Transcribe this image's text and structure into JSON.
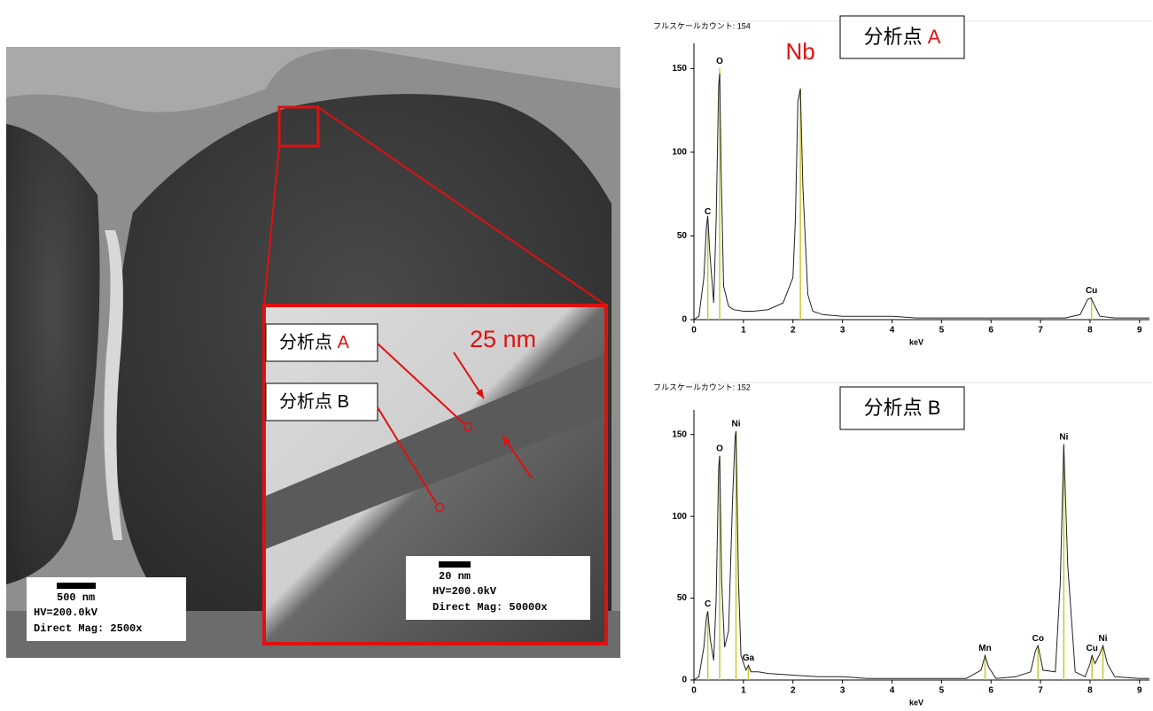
{
  "micrograph": {
    "point_a": {
      "text": "分析点",
      "letter": "A"
    },
    "point_b": {
      "text": "分析点",
      "letter": "B"
    },
    "thickness": "25 nm",
    "scale_low": {
      "bar": "500 nm",
      "hv": "HV=200.0kV",
      "mag": "Direct Mag: 2500x"
    },
    "scale_high": {
      "bar": "20 nm",
      "hv": "HV=200.0kV",
      "mag": "Direct Mag: 50000x"
    }
  },
  "chart_data": [
    {
      "type": "line",
      "fullscale": "フルスケールカウント: 154",
      "box_label": {
        "text": "分析点",
        "letter": "A"
      },
      "x_label": "keV",
      "xlim": [
        0,
        9.2
      ],
      "xticks": [
        0,
        1,
        2,
        3,
        4,
        5,
        6,
        7,
        8,
        9
      ],
      "ylim": [
        0,
        165
      ],
      "yticks": [
        0,
        50,
        100,
        150
      ],
      "series": [
        {
          "color": "#222222",
          "x": [
            0,
            0.1,
            0.2,
            0.25,
            0.28,
            0.32,
            0.4,
            0.45,
            0.5,
            0.52,
            0.55,
            0.6,
            0.7,
            0.8,
            1.0,
            1.2,
            1.5,
            1.8,
            2.0,
            2.05,
            2.1,
            2.15,
            2.2,
            2.3,
            2.4,
            2.6,
            3,
            3.5,
            4,
            4.5,
            5,
            5.5,
            6,
            6.5,
            7,
            7.5,
            7.8,
            7.95,
            8.02,
            8.1,
            8.2,
            8.5,
            9,
            9.2
          ],
          "values": [
            0,
            2,
            25,
            55,
            62,
            40,
            10,
            60,
            140,
            147,
            90,
            20,
            8,
            6,
            5,
            5,
            6,
            10,
            25,
            60,
            130,
            138,
            80,
            15,
            5,
            3,
            2,
            2,
            2,
            1,
            1,
            1,
            1,
            1,
            1,
            1,
            3,
            12,
            13,
            8,
            2,
            1,
            1,
            1
          ]
        }
      ],
      "line_color": "#c8c832",
      "annotations": [
        {
          "text": "C",
          "x": 0.28,
          "y": 60
        },
        {
          "text": "O",
          "x": 0.52,
          "y": 150
        },
        {
          "text": "Nb",
          "x": 2.15,
          "y": 138,
          "color": "#e01010"
        },
        {
          "text": "Cu",
          "x": 8.03,
          "y": 13
        }
      ]
    },
    {
      "type": "line",
      "fullscale": "フルスケールカウント: 152",
      "box_label": {
        "text": "分析点",
        "letter": "B"
      },
      "x_label": "keV",
      "xlim": [
        0,
        9.2
      ],
      "xticks": [
        0,
        1,
        2,
        3,
        4,
        5,
        6,
        7,
        8,
        9
      ],
      "ylim": [
        0,
        165
      ],
      "yticks": [
        0,
        50,
        100,
        150
      ],
      "series": [
        {
          "color": "#222222",
          "x": [
            0,
            0.1,
            0.2,
            0.25,
            0.28,
            0.33,
            0.4,
            0.45,
            0.5,
            0.52,
            0.56,
            0.62,
            0.7,
            0.78,
            0.83,
            0.85,
            0.9,
            0.95,
            1.05,
            1.1,
            1.15,
            1.3,
            1.5,
            2,
            2.5,
            3,
            3.5,
            4,
            4.5,
            5,
            5.5,
            5.8,
            5.88,
            5.95,
            6.1,
            6.5,
            6.8,
            6.9,
            6.95,
            7.05,
            7.3,
            7.4,
            7.47,
            7.55,
            7.7,
            7.9,
            8.0,
            8.04,
            8.1,
            8.2,
            8.26,
            8.35,
            8.5,
            9,
            9.2
          ],
          "values": [
            0,
            2,
            20,
            38,
            42,
            25,
            12,
            50,
            130,
            137,
            60,
            20,
            30,
            110,
            148,
            152,
            60,
            15,
            6,
            9,
            5,
            5,
            4,
            3,
            2,
            2,
            1,
            1,
            1,
            1,
            1,
            6,
            15,
            8,
            1,
            2,
            5,
            18,
            21,
            6,
            5,
            60,
            144,
            70,
            5,
            2,
            10,
            15,
            10,
            16,
            21,
            10,
            2,
            1,
            1
          ]
        }
      ],
      "line_color": "#c8c832",
      "annotations": [
        {
          "text": "C",
          "x": 0.28,
          "y": 42
        },
        {
          "text": "O",
          "x": 0.52,
          "y": 137
        },
        {
          "text": "Ni",
          "x": 0.85,
          "y": 152
        },
        {
          "text": "Ga",
          "x": 1.1,
          "y": 9
        },
        {
          "text": "Mn",
          "x": 5.88,
          "y": 15
        },
        {
          "text": "Co",
          "x": 6.95,
          "y": 21
        },
        {
          "text": "Ni",
          "x": 7.47,
          "y": 144
        },
        {
          "text": "Cu",
          "x": 8.04,
          "y": 15
        },
        {
          "text": "Ni",
          "x": 8.26,
          "y": 21
        }
      ]
    }
  ]
}
